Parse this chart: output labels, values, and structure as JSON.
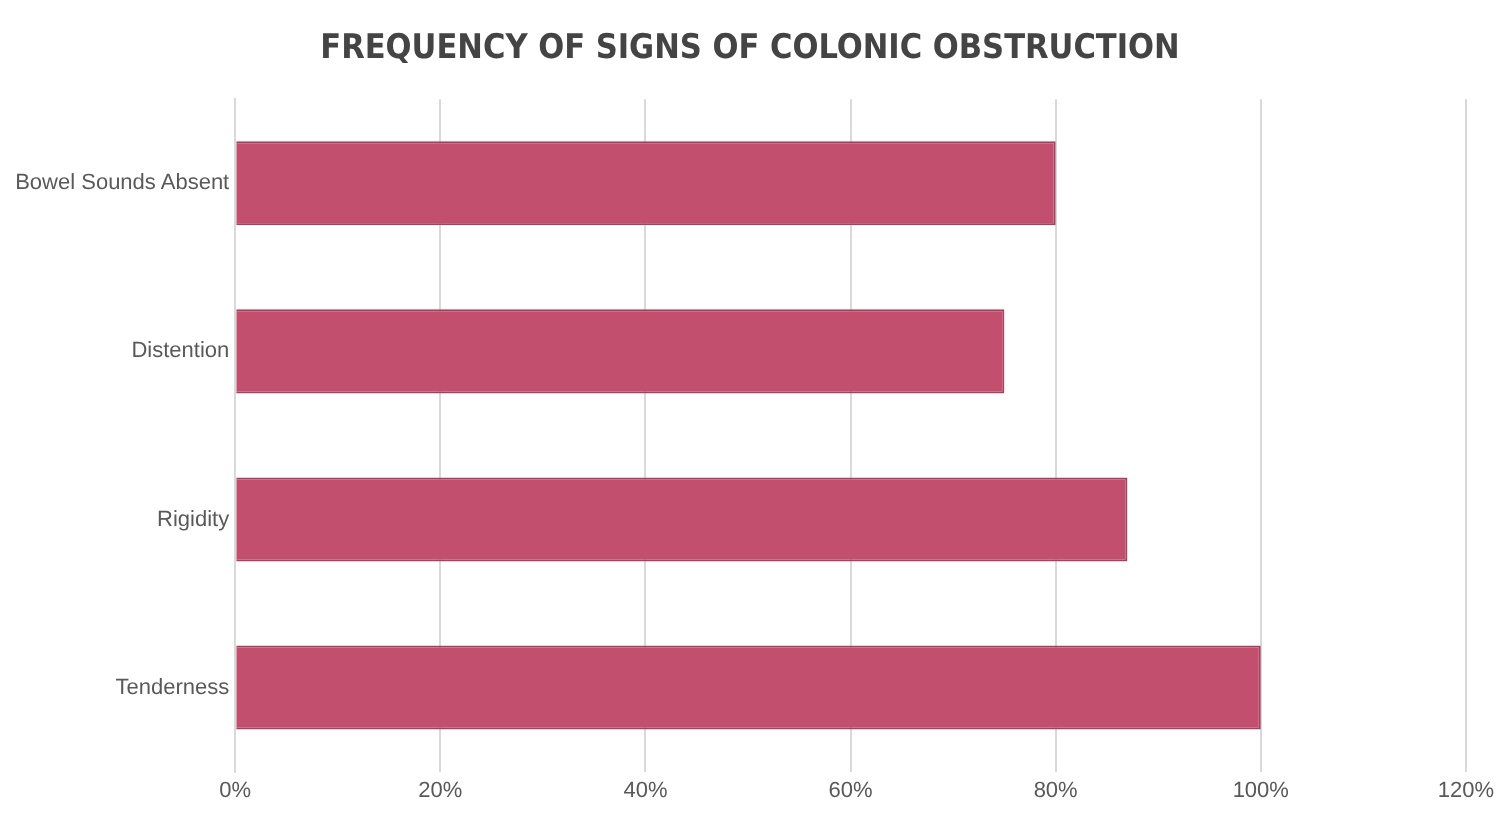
{
  "chart_data": {
    "type": "bar",
    "orientation": "horizontal",
    "title": "FREQUENCY OF SIGNS OF COLONIC OBSTRUCTION",
    "categories": [
      "Bowel Sounds Absent",
      "Distention",
      "Rigidity",
      "Tenderness"
    ],
    "values": [
      80,
      75,
      87,
      100
    ],
    "color": "#c24f6e",
    "xlim": [
      0,
      120
    ],
    "xticks": [
      {
        "value": 0,
        "label": "0%"
      },
      {
        "value": 20,
        "label": "20%"
      },
      {
        "value": 40,
        "label": "40%"
      },
      {
        "value": 60,
        "label": "60%"
      },
      {
        "value": 80,
        "label": "80%"
      },
      {
        "value": 100,
        "label": "100%"
      },
      {
        "value": 120,
        "label": "120%"
      }
    ],
    "grid": "x"
  }
}
